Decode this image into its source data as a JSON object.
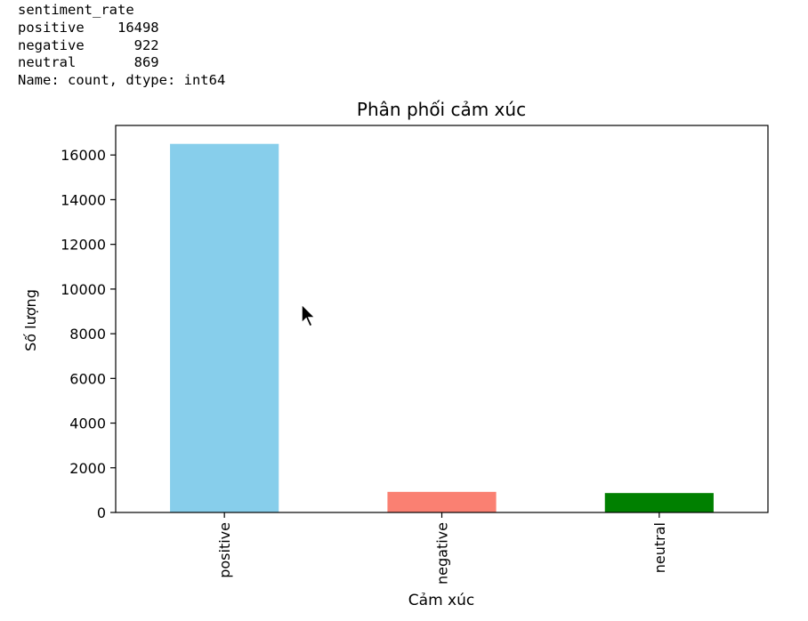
{
  "output": {
    "lines": [
      "sentiment_rate",
      "positive    16498",
      "negative      922",
      "neutral       869",
      "Name: count, dtype: int64"
    ]
  },
  "chart_data": {
    "type": "bar",
    "title": "Phân phối cảm xúc",
    "xlabel": "Cảm xúc",
    "ylabel": "Số lượng",
    "categories": [
      "positive",
      "negative",
      "neutral"
    ],
    "values": [
      16498,
      922,
      869
    ],
    "colors": [
      "#87ceeb",
      "#fa8072",
      "#008000"
    ],
    "ylim": [
      0,
      17322.9
    ],
    "yticks": [
      0,
      2000,
      4000,
      6000,
      8000,
      10000,
      12000,
      14000,
      16000
    ],
    "grid": false,
    "legend": "none"
  },
  "cursor": {
    "icon": "mouse-pointer-icon"
  }
}
